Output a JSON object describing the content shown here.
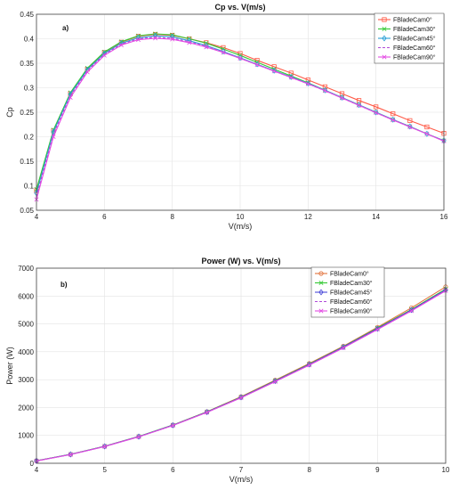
{
  "chart_data": [
    {
      "type": "line",
      "title": "Cp vs. V(m/s)",
      "xlabel": "V(m/s)",
      "ylabel": "Cp",
      "annotation": "a)",
      "xlim": [
        4,
        16
      ],
      "ylim": [
        0.05,
        0.45
      ],
      "xticks": [
        4,
        6,
        8,
        10,
        12,
        14,
        16
      ],
      "yticks": [
        0.05,
        0.1,
        0.15,
        0.2,
        0.25,
        0.3,
        0.35,
        0.4,
        0.45
      ],
      "ytick_labels": [
        "0.05",
        "0.1",
        "0.15",
        "0.2",
        "0.25",
        "0.3",
        "0.35",
        "0.4",
        "0.45"
      ],
      "grid": true,
      "legend_position": "top-right",
      "x": [
        4,
        4.5,
        5,
        5.5,
        6,
        6.5,
        7,
        7.5,
        8,
        8.5,
        9,
        9.5,
        10,
        10.5,
        11,
        11.5,
        12,
        12.5,
        13,
        13.5,
        14,
        14.5,
        15,
        15.5,
        16
      ],
      "series": [
        {
          "name": "FBladeCam0°",
          "color": "#ff5a47",
          "marker": "square",
          "dash": false,
          "values": [
            0.09,
            0.212,
            0.288,
            0.338,
            0.372,
            0.393,
            0.405,
            0.409,
            0.407,
            0.4,
            0.392,
            0.382,
            0.37,
            0.356,
            0.343,
            0.33,
            0.316,
            0.302,
            0.288,
            0.274,
            0.261,
            0.247,
            0.233,
            0.22,
            0.207
          ]
        },
        {
          "name": "FBladeCam30°",
          "color": "#33c933",
          "marker": "x",
          "dash": false,
          "values": [
            0.093,
            0.214,
            0.29,
            0.34,
            0.373,
            0.394,
            0.406,
            0.41,
            0.408,
            0.4,
            0.391,
            0.379,
            0.366,
            0.352,
            0.338,
            0.324,
            0.31,
            0.295,
            0.28,
            0.265,
            0.25,
            0.235,
            0.221,
            0.206,
            0.192
          ]
        },
        {
          "name": "FBladeCam45°",
          "color": "#2a9fd6",
          "marker": "diamond",
          "dash": false,
          "values": [
            0.085,
            0.21,
            0.287,
            0.337,
            0.37,
            0.391,
            0.402,
            0.406,
            0.404,
            0.396,
            0.386,
            0.374,
            0.361,
            0.348,
            0.335,
            0.322,
            0.309,
            0.295,
            0.28,
            0.265,
            0.25,
            0.235,
            0.221,
            0.206,
            0.192
          ]
        },
        {
          "name": "FBladeCam60°",
          "color": "#b04ad8",
          "marker": "none",
          "dash": true,
          "values": [
            0.078,
            0.206,
            0.284,
            0.335,
            0.368,
            0.389,
            0.4,
            0.403,
            0.401,
            0.394,
            0.385,
            0.373,
            0.36,
            0.347,
            0.334,
            0.321,
            0.308,
            0.294,
            0.279,
            0.264,
            0.249,
            0.235,
            0.22,
            0.206,
            0.192
          ]
        },
        {
          "name": "FBladeCam90°",
          "color": "#e34ae3",
          "marker": "x",
          "dash": false,
          "values": [
            0.072,
            0.2,
            0.28,
            0.332,
            0.366,
            0.387,
            0.398,
            0.401,
            0.399,
            0.392,
            0.383,
            0.372,
            0.36,
            0.347,
            0.334,
            0.321,
            0.308,
            0.294,
            0.279,
            0.264,
            0.249,
            0.234,
            0.22,
            0.206,
            0.191
          ]
        }
      ]
    },
    {
      "type": "line",
      "title": "Power (W) vs. V(m/s)",
      "xlabel": "V(m/s)",
      "ylabel": "Power (W)",
      "annotation": "b)",
      "xlim": [
        4,
        10
      ],
      "ylim": [
        0,
        7000
      ],
      "xticks": [
        4,
        5,
        6,
        7,
        8,
        9,
        10
      ],
      "yticks": [
        0,
        1000,
        2000,
        3000,
        4000,
        5000,
        6000,
        7000
      ],
      "ytick_labels": [
        "0",
        "1000",
        "2000",
        "3000",
        "4000",
        "5000",
        "6000",
        "7000"
      ],
      "grid": true,
      "legend_position": "top-right",
      "x": [
        4,
        4.5,
        5,
        5.5,
        6,
        6.5,
        7,
        7.5,
        8,
        8.5,
        9,
        9.5,
        10
      ],
      "series": [
        {
          "name": "FBladeCam0°",
          "color": "#e2733c",
          "marker": "circle",
          "dash": false,
          "values": [
            90,
            320,
            610,
            960,
            1370,
            1850,
            2390,
            2980,
            3580,
            4200,
            4880,
            5580,
            6330
          ]
        },
        {
          "name": "FBladeCam30°",
          "color": "#33c933",
          "marker": "x",
          "dash": false,
          "values": [
            92,
            322,
            612,
            962,
            1372,
            1845,
            2375,
            2960,
            3555,
            4180,
            4850,
            5520,
            6250
          ]
        },
        {
          "name": "FBladeCam45°",
          "color": "#4b4bd8",
          "marker": "diamond",
          "dash": false,
          "values": [
            88,
            318,
            606,
            956,
            1364,
            1836,
            2366,
            2950,
            3545,
            4170,
            4830,
            5500,
            6220
          ]
        },
        {
          "name": "FBladeCam60°",
          "color": "#b04ad8",
          "marker": "none",
          "dash": true,
          "values": [
            85,
            315,
            603,
            952,
            1360,
            1830,
            2355,
            2935,
            3530,
            4150,
            4810,
            5480,
            6200
          ]
        },
        {
          "name": "FBladeCam90°",
          "color": "#e34ae3",
          "marker": "x",
          "dash": false,
          "values": [
            82,
            312,
            600,
            948,
            1355,
            1825,
            2350,
            2930,
            3520,
            4140,
            4800,
            5470,
            6190
          ]
        }
      ]
    }
  ]
}
